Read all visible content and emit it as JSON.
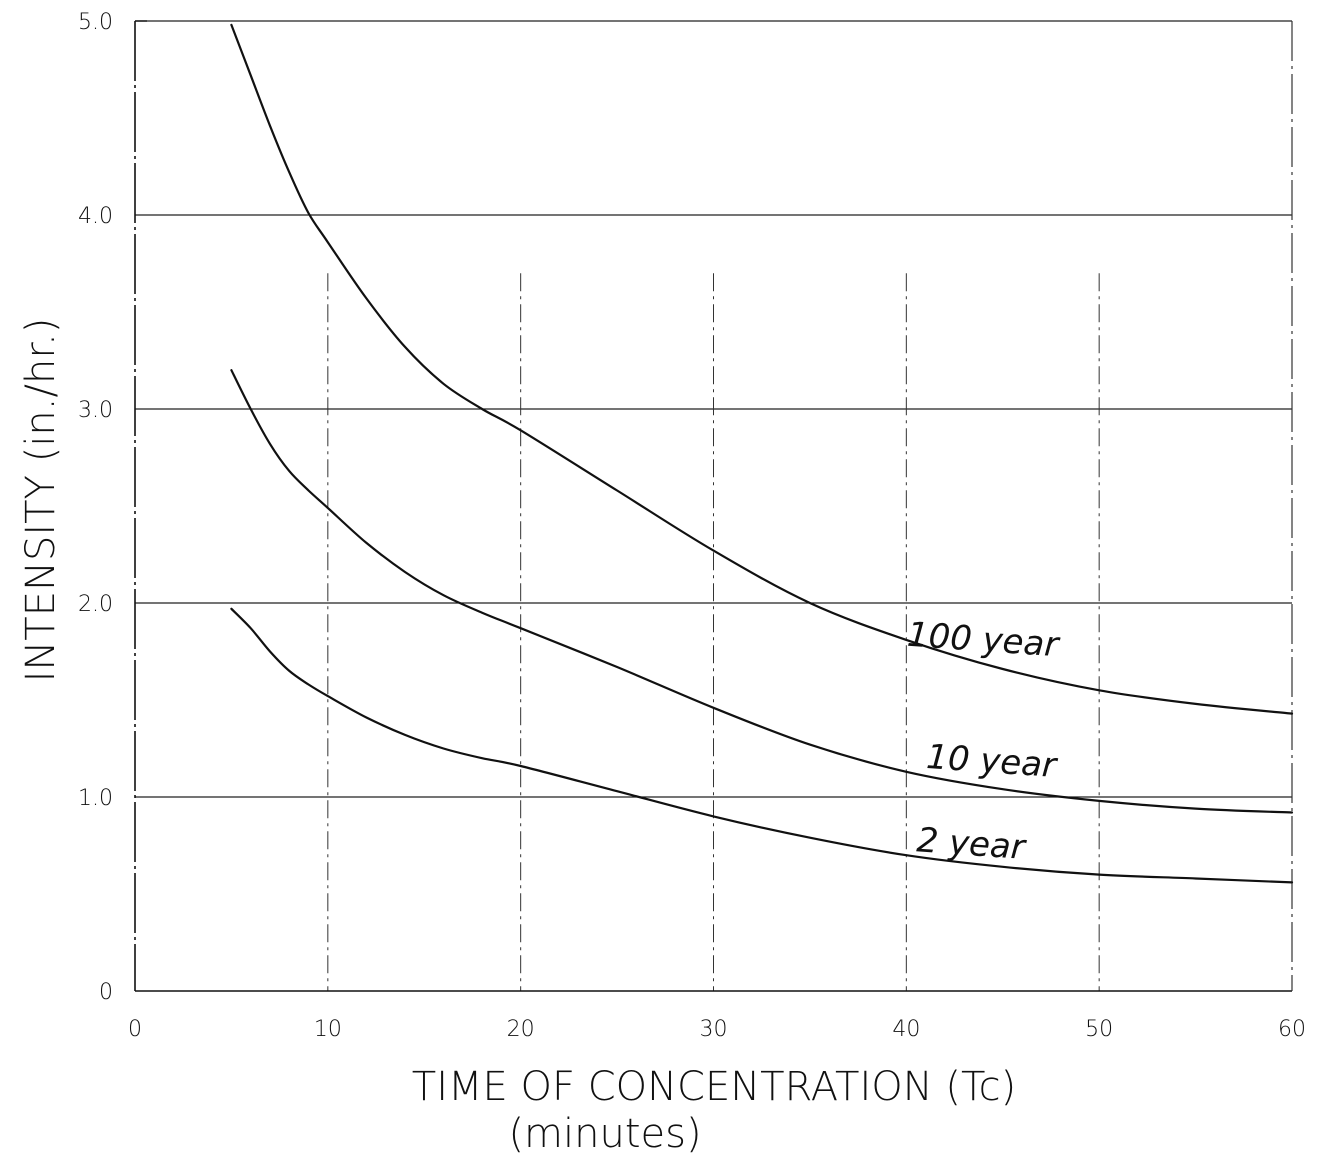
{
  "chart_data": {
    "type": "line",
    "title": "",
    "xlabel": "TIME OF CONCENTRATION (Tc)",
    "xlabel_sub": "(minutes)",
    "ylabel": "INTENSITY (in./hr.)",
    "xlim": [
      0,
      60
    ],
    "ylim": [
      0,
      5
    ],
    "x_ticks": [
      0,
      10,
      20,
      30,
      40,
      50,
      60
    ],
    "x_tick_labels": [
      "0",
      "10",
      "20",
      "30",
      "40",
      "50",
      "60"
    ],
    "y_ticks": [
      0,
      1,
      2,
      3,
      4,
      5
    ],
    "y_tick_labels": [
      "0",
      "1.0",
      "2.0",
      "3.0",
      "4.0",
      "5.0"
    ],
    "grid": {
      "horizontal": "solid",
      "vertical": "dash-dot"
    },
    "legend": "inline labels",
    "series": [
      {
        "name": "100 year",
        "x": [
          5,
          6,
          7,
          8,
          9,
          10,
          12,
          14,
          16,
          18,
          20,
          25,
          30,
          35,
          40,
          45,
          50,
          55,
          60
        ],
        "y": [
          4.98,
          4.72,
          4.46,
          4.22,
          4.01,
          3.86,
          3.57,
          3.32,
          3.13,
          3.0,
          2.89,
          2.58,
          2.27,
          2.0,
          1.81,
          1.66,
          1.55,
          1.48,
          1.43
        ]
      },
      {
        "name": "10 year",
        "x": [
          5,
          6,
          7,
          8,
          9,
          10,
          12,
          14,
          16,
          18,
          20,
          25,
          30,
          35,
          40,
          45,
          50,
          55,
          60
        ],
        "y": [
          3.2,
          3.0,
          2.82,
          2.68,
          2.58,
          2.49,
          2.31,
          2.16,
          2.04,
          1.95,
          1.87,
          1.67,
          1.46,
          1.27,
          1.13,
          1.04,
          0.98,
          0.94,
          0.92
        ]
      },
      {
        "name": "2 year",
        "x": [
          5,
          6,
          7,
          8,
          9,
          10,
          12,
          14,
          16,
          18,
          20,
          25,
          30,
          35,
          40,
          45,
          50,
          55,
          60
        ],
        "y": [
          1.97,
          1.87,
          1.75,
          1.65,
          1.58,
          1.52,
          1.41,
          1.32,
          1.25,
          1.2,
          1.16,
          1.03,
          0.9,
          0.79,
          0.7,
          0.64,
          0.6,
          0.58,
          0.56
        ]
      }
    ],
    "series_label_anchors": [
      {
        "x": 40,
        "y": 1.78
      },
      {
        "x": 41,
        "y": 1.15
      },
      {
        "x": 40.5,
        "y": 0.72
      }
    ]
  }
}
